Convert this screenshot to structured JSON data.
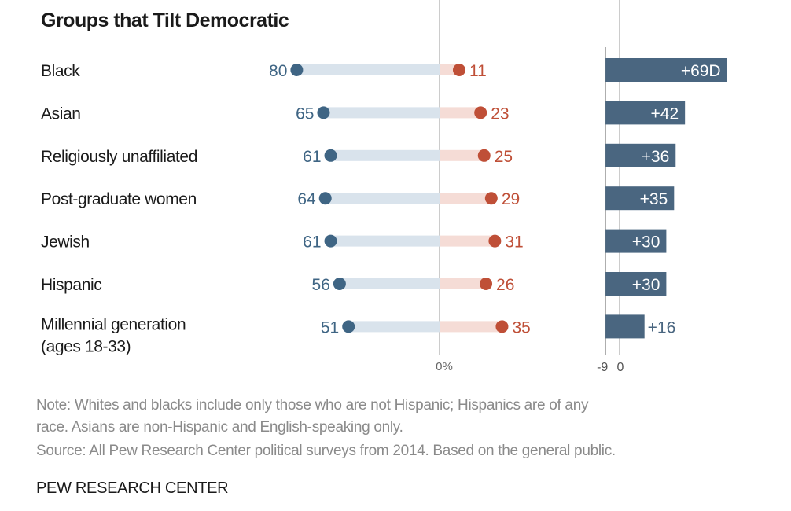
{
  "title": "Groups that Tilt Democratic",
  "notes": {
    "line1": "Note: Whites and blacks include only those who are not Hispanic; Hispanics are of any",
    "line2": "race. Asians are non-Hispanic and English-speaking only.",
    "source": "Source: All Pew Research Center political surveys from 2014. Based on the general public."
  },
  "brand": "PEW RESEARCH CENTER",
  "chart_data": {
    "type": "dot-bar",
    "categories": [
      [
        "Black"
      ],
      [
        "Asian"
      ],
      [
        "Religiously unaffiliated"
      ],
      [
        "Post-graduate women"
      ],
      [
        "Jewish"
      ],
      [
        "Hispanic"
      ],
      [
        "Millennial generation",
        "(ages 18-33)"
      ]
    ],
    "series": [
      {
        "values": [
          80,
          65,
          61,
          64,
          61,
          56,
          51
        ],
        "color": "#3f6584"
      },
      {
        "values": [
          11,
          23,
          25,
          29,
          31,
          26,
          35
        ],
        "color": "#bf4f37"
      }
    ],
    "difference": {
      "values": [
        69,
        42,
        36,
        35,
        30,
        30,
        16
      ],
      "labels": [
        "+69D",
        "+42",
        "+36",
        "+35",
        "+30",
        "+30",
        "+16"
      ],
      "color": "#4a6680"
    },
    "dot_axis_label": "0%",
    "diff_axis_ticks": [
      "-9",
      "0"
    ],
    "colors": {
      "dem_track": "#d9e3ec",
      "rep_track": "#f5dcd6",
      "axis": "#bbbbbb"
    }
  }
}
